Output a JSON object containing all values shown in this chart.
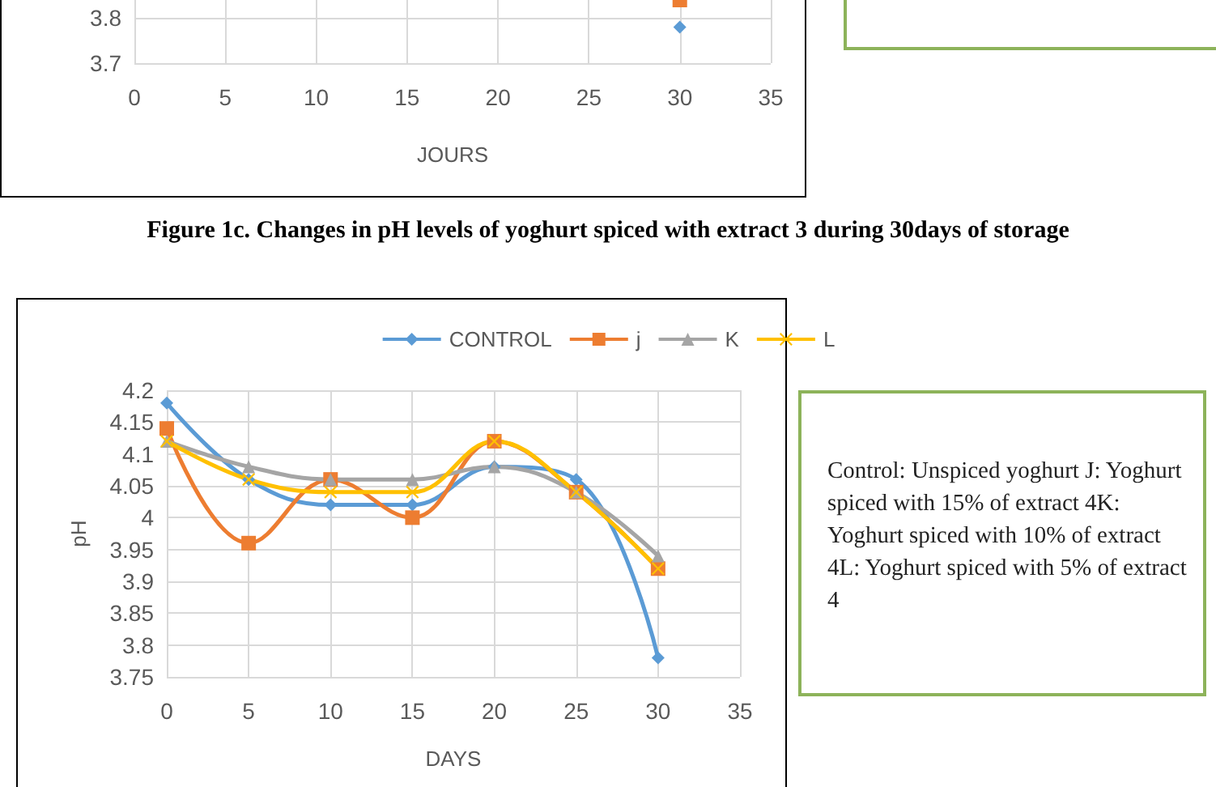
{
  "chart_data": [
    {
      "type": "line",
      "xlabel": "JOURS",
      "x": [
        30
      ],
      "xlim": [
        0,
        35
      ],
      "xticks": [
        0,
        5,
        10,
        15,
        20,
        25,
        30,
        35
      ],
      "ylim": [
        3.7,
        3.84
      ],
      "yticks": [
        3.7,
        3.8
      ],
      "grid": true,
      "legend": false,
      "series": [
        {
          "color": "#5b9bd5",
          "marker": "diamond",
          "values": [
            3.78
          ]
        },
        {
          "color": "#ed7d31",
          "marker": "square",
          "values": [
            3.84
          ]
        }
      ]
    },
    {
      "type": "line",
      "title": "Figure 1c. Changes in pH levels of yoghurt spiced with extract 3 during 30days of storage",
      "xlabel": "DAYS",
      "ylabel": "pH",
      "x": [
        0,
        5,
        10,
        15,
        20,
        25,
        30
      ],
      "xlim": [
        0,
        35
      ],
      "xticks": [
        0,
        5,
        10,
        15,
        20,
        25,
        30,
        35
      ],
      "ylim": [
        3.75,
        4.2
      ],
      "yticks": [
        3.75,
        3.8,
        3.85,
        3.9,
        3.95,
        4,
        4.05,
        4.1,
        4.15,
        4.2
      ],
      "grid": true,
      "legend": "top",
      "annotations": [
        "Control: Unspiced yoghurt J: Yoghurt spiced with 15% of extract 4K: Yoghurt spiced with 10% of extract 4L: Yoghurt spiced with 5% of extract 4"
      ],
      "series": [
        {
          "name": "CONTROL",
          "color": "#5b9bd5",
          "marker": "diamond",
          "values": [
            4.18,
            4.06,
            4.02,
            4.02,
            4.08,
            4.06,
            3.78
          ]
        },
        {
          "name": "j",
          "color": "#ed7d31",
          "marker": "square",
          "values": [
            4.14,
            3.96,
            4.06,
            4.0,
            4.12,
            4.04,
            3.92
          ]
        },
        {
          "name": "K",
          "color": "#a5a5a5",
          "marker": "triangle",
          "values": [
            4.12,
            4.08,
            4.06,
            4.06,
            4.08,
            4.04,
            3.94
          ]
        },
        {
          "name": "L",
          "color": "#ffc000",
          "marker": "cross",
          "values": [
            4.12,
            4.06,
            4.04,
            4.04,
            4.12,
            4.04,
            3.92
          ]
        }
      ]
    }
  ]
}
